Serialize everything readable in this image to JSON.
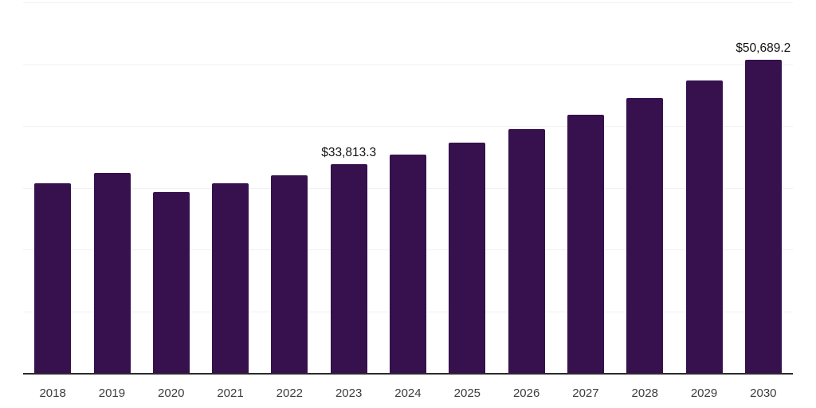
{
  "chart_data": {
    "type": "bar",
    "title": "",
    "xlabel": "",
    "ylabel": "",
    "categories": [
      "2018",
      "2019",
      "2020",
      "2021",
      "2022",
      "2023",
      "2024",
      "2025",
      "2026",
      "2027",
      "2028",
      "2029",
      "2030"
    ],
    "values": [
      30750,
      32400,
      29350,
      30700,
      32000,
      33813.3,
      35350,
      37300,
      39500,
      41850,
      44500,
      47400,
      50689.2
    ],
    "data_labels": [
      "",
      "",
      "",
      "",
      "",
      "$33,813.3",
      "",
      "",
      "",
      "",
      "",
      "",
      "$50,689.2"
    ],
    "ylim": [
      0,
      60000
    ],
    "grid_step": 10000,
    "grid": "horizontal",
    "legend": "none",
    "colors": {
      "bar": "#36114D",
      "axis_line": "#2B2B2B",
      "gridline": "#F1F1F2",
      "tick_label": "#3D3D3D",
      "data_label": "#141414",
      "background": "#FFFFFF"
    }
  }
}
